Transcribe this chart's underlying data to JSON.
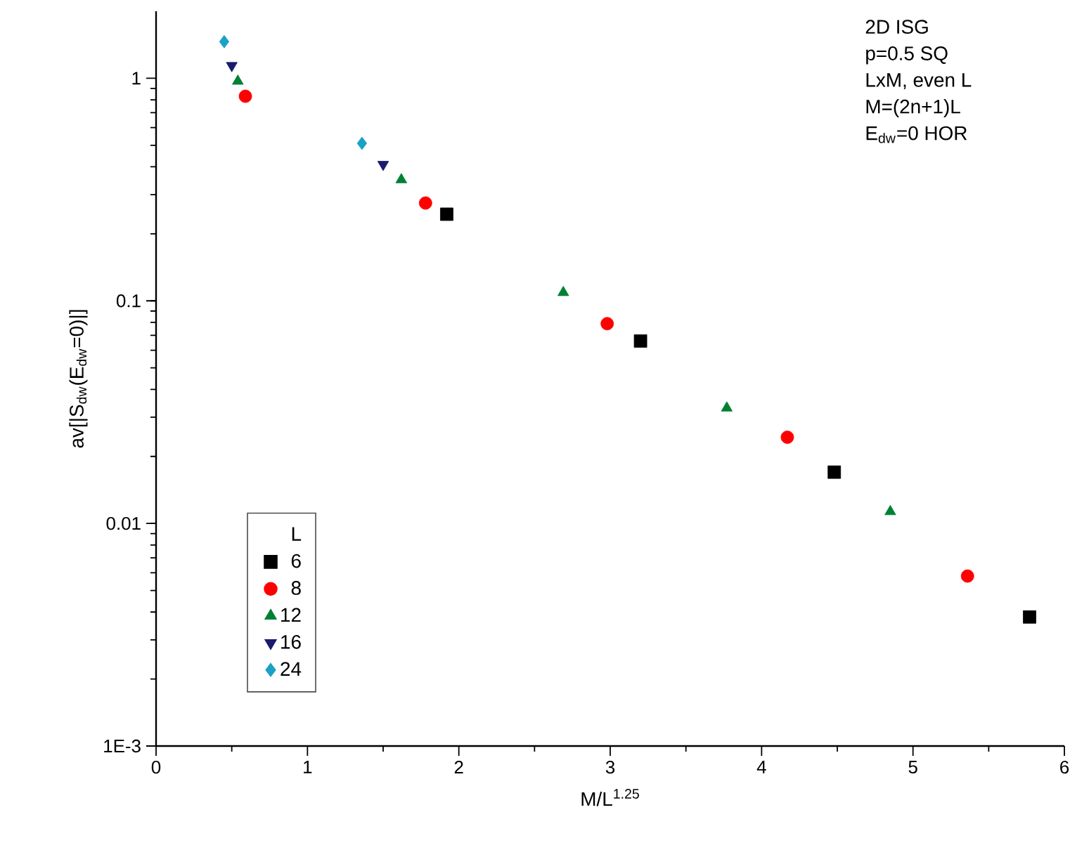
{
  "chart_data": {
    "type": "scatter",
    "xlabel": "M/L$^{1.25}$",
    "ylabel": "av[|S$_{dw}$(E$_{dw}$=0)|]",
    "legend_title": "L",
    "annotations": [
      "2D ISG",
      "p=0.5 SQ",
      "LxM, even L",
      "M=(2n+1)L",
      "E$_{dw}$=0 HOR"
    ],
    "series": [
      {
        "name": "6",
        "color": "#000000",
        "marker": "square",
        "x": [
          1.92,
          3.2,
          4.48,
          5.77
        ],
        "values": [
          0.245,
          0.066,
          0.017,
          0.0038
        ]
      },
      {
        "name": "8",
        "color": "#ff0000",
        "marker": "circle",
        "x": [
          0.59,
          1.78,
          2.98,
          4.17,
          5.36
        ],
        "values": [
          0.83,
          0.275,
          0.079,
          0.0244,
          0.0058
        ]
      },
      {
        "name": "12",
        "color": "#008033",
        "marker": "triangle",
        "x": [
          0.54,
          1.62,
          2.69,
          3.77,
          4.85
        ],
        "values": [
          0.97,
          0.35,
          0.109,
          0.033,
          0.0113
        ]
      },
      {
        "name": "16",
        "color": "#1a1a6e",
        "marker": "triangle-down",
        "x": [
          0.5,
          1.5
        ],
        "values": [
          1.14,
          0.41
        ]
      },
      {
        "name": "24",
        "color": "#1ba1c6",
        "marker": "diamond",
        "x": [
          0.45,
          1.36
        ],
        "values": [
          1.46,
          0.51
        ]
      }
    ],
    "xlim": [
      0,
      6
    ],
    "xticks": [
      0,
      1,
      2,
      3,
      4,
      5,
      6
    ],
    "ylim": [
      0.001,
      2
    ],
    "yticks": [
      {
        "value": 0.001,
        "label": "1E-3"
      },
      0.01,
      0.1,
      1
    ],
    "log": "y",
    "legend": "bottom left",
    "grid": false
  }
}
